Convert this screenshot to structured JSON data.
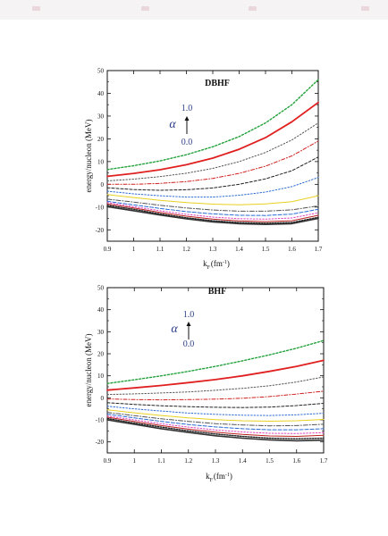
{
  "chart_data": [
    {
      "type": "line",
      "title": "DBHF",
      "xlabel": "k",
      "xlabel_sub": "F",
      "xlabel_unit": "(fm",
      "xlabel_sup": "-1",
      "xlabel_close": ")",
      "ylabel": "energy/nucleon (MeV)",
      "xlim": [
        0.9,
        1.7
      ],
      "ylim": [
        -25,
        50
      ],
      "xticks": [
        "0.9",
        "1",
        "1.1",
        "1.2",
        "1.3",
        "1.4",
        "1.5",
        "1.6",
        "1.7"
      ],
      "yticks": [
        "50",
        "40",
        "30",
        "20",
        "10",
        "0",
        "-10",
        "-20"
      ],
      "annotation": {
        "symbol": "α",
        "top": "1.0",
        "bottom": "0.0"
      },
      "x": [
        0.9,
        1.0,
        1.1,
        1.2,
        1.3,
        1.4,
        1.5,
        1.6,
        1.7
      ],
      "series": [
        {
          "color": "#23a23c",
          "dash": "2,2",
          "width": 1.4,
          "values": [
            6.5,
            8.2,
            10.3,
            13.0,
            16.5,
            21.0,
            27.0,
            35.0,
            46.0
          ]
        },
        {
          "color": "#e02020",
          "dash": "",
          "width": 1.8,
          "values": [
            3.5,
            4.8,
            6.4,
            8.6,
            11.5,
            15.4,
            20.5,
            27.5,
            36.0
          ]
        },
        {
          "color": "#555555",
          "dash": "1.5,2",
          "width": 1.0,
          "values": [
            1.5,
            2.3,
            3.4,
            4.9,
            7.0,
            10.0,
            14.0,
            19.5,
            27.0
          ]
        },
        {
          "color": "#d02020",
          "dash": "4,2,1,2",
          "width": 1.0,
          "values": [
            0.0,
            0.0,
            0.4,
            1.2,
            2.6,
            4.8,
            8.0,
            12.5,
            19.0
          ]
        },
        {
          "color": "#222222",
          "dash": "3,2",
          "width": 1.0,
          "values": [
            -1.5,
            -2.3,
            -2.6,
            -2.4,
            -1.6,
            0.0,
            2.4,
            6.0,
            12.0
          ]
        },
        {
          "color": "#2a6ad6",
          "dash": "1.5,2",
          "width": 1.0,
          "values": [
            -3.0,
            -4.2,
            -5.0,
            -5.6,
            -5.6,
            -4.8,
            -3.4,
            -1.0,
            3.0
          ]
        },
        {
          "color": "#e8d020",
          "dash": "",
          "width": 1.0,
          "values": [
            -4.5,
            -5.8,
            -7.0,
            -8.0,
            -8.7,
            -9.0,
            -8.6,
            -7.6,
            -5.0
          ]
        },
        {
          "color": "#555555",
          "dash": "5,2,1,2",
          "width": 1.0,
          "values": [
            -6.5,
            -7.8,
            -9.2,
            -10.4,
            -11.3,
            -11.8,
            -11.8,
            -11.2,
            -9.5
          ]
        },
        {
          "color": "#2a6ad6",
          "dash": "4,2",
          "width": 1.0,
          "values": [
            -7.5,
            -9.0,
            -10.6,
            -12.0,
            -13.0,
            -13.6,
            -13.7,
            -13.1,
            -11.0
          ]
        },
        {
          "color": "#e040c0",
          "dash": "1.5,2",
          "width": 1.0,
          "values": [
            -8.0,
            -9.8,
            -11.6,
            -13.2,
            -14.4,
            -15.1,
            -15.3,
            -14.8,
            -12.5
          ]
        },
        {
          "color": "#bb2020",
          "dash": "",
          "width": 1.0,
          "values": [
            -8.6,
            -10.4,
            -12.3,
            -14.0,
            -15.3,
            -16.1,
            -16.4,
            -16.0,
            -13.6
          ]
        },
        {
          "color": "#222222",
          "dash": "1.5,1.5",
          "width": 1.4,
          "values": [
            -9.2,
            -11.0,
            -13.0,
            -14.7,
            -16.0,
            -16.8,
            -17.1,
            -16.8,
            -14.5
          ]
        },
        {
          "color": "#333333",
          "dash": "",
          "width": 1.6,
          "values": [
            -9.8,
            -11.6,
            -13.5,
            -15.2,
            -16.5,
            -17.3,
            -17.6,
            -17.3,
            -15.0
          ]
        }
      ]
    },
    {
      "type": "line",
      "title": "BHF",
      "xlabel": "k",
      "xlabel_sub": "F",
      "xlabel_unit": "(fm",
      "xlabel_sup": "-1",
      "xlabel_close": ")",
      "ylabel": "energy/nucleon (MeV)",
      "xlim": [
        0.9,
        1.7
      ],
      "ylim": [
        -25,
        50
      ],
      "xticks": [
        "0.9",
        "1",
        "1.1",
        "1.2",
        "1.3",
        "1.4",
        "1.5",
        "1.6",
        "1.7"
      ],
      "yticks": [
        "50",
        "40",
        "30",
        "20",
        "10",
        "0",
        "-10",
        "-20"
      ],
      "annotation": {
        "symbol": "α",
        "top": "1.0",
        "bottom": "0.0"
      },
      "x": [
        0.9,
        1.0,
        1.1,
        1.2,
        1.3,
        1.4,
        1.5,
        1.6,
        1.7
      ],
      "series": [
        {
          "color": "#23a23c",
          "dash": "2,2",
          "width": 1.4,
          "values": [
            6.5,
            8.2,
            10.0,
            12.0,
            14.3,
            16.8,
            19.5,
            22.5,
            26.0
          ]
        },
        {
          "color": "#e02020",
          "dash": "",
          "width": 1.8,
          "values": [
            3.5,
            4.5,
            5.6,
            6.9,
            8.3,
            10.0,
            12.0,
            14.3,
            17.0
          ]
        },
        {
          "color": "#555555",
          "dash": "1.5,2",
          "width": 1.0,
          "values": [
            1.5,
            1.8,
            2.2,
            2.7,
            3.4,
            4.3,
            5.5,
            7.2,
            9.5
          ]
        },
        {
          "color": "#d02020",
          "dash": "4,2,1,2",
          "width": 1.0,
          "values": [
            -0.5,
            -0.8,
            -0.9,
            -0.8,
            -0.6,
            -0.2,
            0.6,
            1.7,
            3.0
          ]
        },
        {
          "color": "#222222",
          "dash": "3,2",
          "width": 1.0,
          "values": [
            -2.2,
            -3.0,
            -3.6,
            -4.0,
            -4.3,
            -4.4,
            -4.2,
            -3.5,
            -2.5
          ]
        },
        {
          "color": "#2a6ad6",
          "dash": "1.5,2",
          "width": 1.0,
          "values": [
            -3.8,
            -5.0,
            -6.0,
            -6.9,
            -7.5,
            -7.9,
            -8.0,
            -7.7,
            -7.0
          ]
        },
        {
          "color": "#e8d020",
          "dash": "",
          "width": 1.0,
          "values": [
            -5.4,
            -6.8,
            -8.0,
            -9.1,
            -9.9,
            -10.4,
            -10.6,
            -10.4,
            -9.8
          ]
        },
        {
          "color": "#555555",
          "dash": "5,2,1,2",
          "width": 1.0,
          "values": [
            -6.6,
            -8.1,
            -9.5,
            -10.7,
            -11.7,
            -12.3,
            -12.7,
            -12.6,
            -12.0
          ]
        },
        {
          "color": "#2a6ad6",
          "dash": "4,2",
          "width": 1.0,
          "values": [
            -7.4,
            -9.1,
            -10.7,
            -12.1,
            -13.2,
            -14.0,
            -14.5,
            -14.5,
            -14.0
          ]
        },
        {
          "color": "#e040c0",
          "dash": "1.5,2",
          "width": 1.0,
          "values": [
            -8.2,
            -10.0,
            -11.8,
            -13.3,
            -14.6,
            -15.5,
            -16.1,
            -16.2,
            -15.8
          ]
        },
        {
          "color": "#bb2020",
          "dash": "",
          "width": 1.0,
          "values": [
            -8.8,
            -10.7,
            -12.6,
            -14.2,
            -15.6,
            -16.6,
            -17.3,
            -17.5,
            -17.0
          ]
        },
        {
          "color": "#222222",
          "dash": "1.5,1.5",
          "width": 1.4,
          "values": [
            -9.4,
            -11.4,
            -13.3,
            -15.0,
            -16.4,
            -17.5,
            -18.3,
            -18.6,
            -18.3
          ]
        },
        {
          "color": "#333333",
          "dash": "",
          "width": 1.6,
          "values": [
            -10.0,
            -12.0,
            -14.0,
            -15.7,
            -17.2,
            -18.3,
            -19.1,
            -19.5,
            -19.2
          ]
        }
      ]
    }
  ]
}
